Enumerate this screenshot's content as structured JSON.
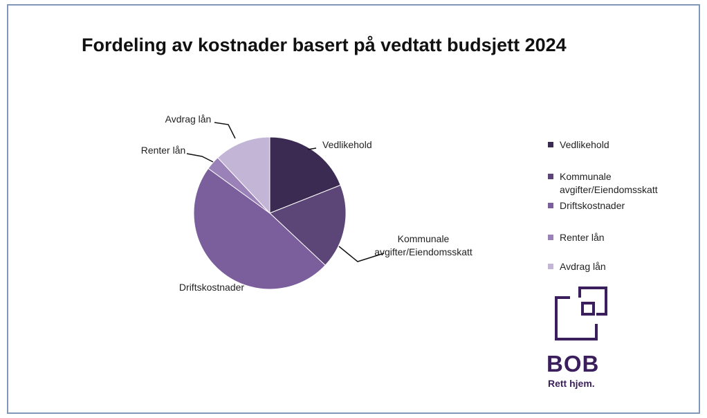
{
  "chart_data": {
    "type": "pie",
    "title": "Fordeling av kostnader basert på vedtatt budsjett 2024",
    "slices": [
      {
        "label": "Vedlikehold",
        "legend_label": "Vedlikehold",
        "value": 19,
        "color": "#3b2a52"
      },
      {
        "label": "Kommunale\navgifter/Eiendomsskatt",
        "legend_label": "Kommunale\navgifter/Eiendomsskatt",
        "value": 18,
        "color": "#5c4678"
      },
      {
        "label": "Driftskostnader",
        "legend_label": "Driftskostnader",
        "value": 48,
        "color": "#7b5e9c"
      },
      {
        "label": "Renter lån",
        "legend_label": "Renter lån",
        "value": 3,
        "color": "#9a82b8"
      },
      {
        "label": "Avdrag lån",
        "legend_label": "Avdrag lån",
        "value": 12,
        "color": "#c3b5d6"
      }
    ],
    "start_angle_deg": 0,
    "direction": "clockwise",
    "legend_position": "right"
  },
  "logo": {
    "name": "bob-logo-icon",
    "word": "BOB",
    "tagline": "Rett hjem.",
    "color": "#3a1f5c"
  }
}
